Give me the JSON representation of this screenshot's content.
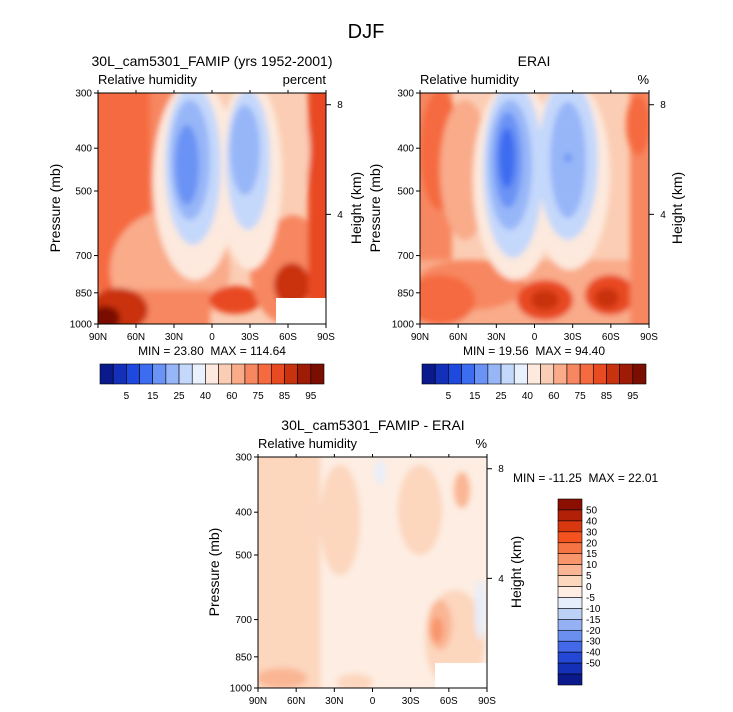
{
  "figure": {
    "title": "DJF"
  },
  "chart_data": [
    {
      "type": "heatmap",
      "id": "model",
      "title": "30L_cam5301_FAMIP (yrs 1952-2001)",
      "left_label": "Relative humidity",
      "right_label": "percent",
      "ylabel": "Pressure (mb)",
      "y2label": "Height (km)",
      "x_ticks": [
        "90N",
        "60N",
        "30N",
        "0",
        "30S",
        "60S",
        "90S"
      ],
      "x_values": [
        90,
        60,
        30,
        0,
        -30,
        -60,
        -90
      ],
      "y_ticks": [
        "300",
        "400",
        "500",
        "700",
        "850",
        "1000"
      ],
      "y_values": [
        300,
        400,
        500,
        700,
        850,
        1000
      ],
      "y2_ticks": [
        "8",
        "4"
      ],
      "y2_values": [
        8,
        4
      ],
      "stats": "MIN = 23.80  MAX = 114.64",
      "min": 23.8,
      "max": 114.64
    },
    {
      "type": "heatmap",
      "id": "obs",
      "title": "ERAI",
      "left_label": "Relative humidity",
      "right_label": "%",
      "ylabel": "Pressure (mb)",
      "y2label": "Height (km)",
      "x_ticks": [
        "90N",
        "60N",
        "30N",
        "0",
        "30S",
        "60S",
        "90S"
      ],
      "x_values": [
        90,
        60,
        30,
        0,
        -30,
        -60,
        -90
      ],
      "y_ticks": [
        "300",
        "400",
        "500",
        "700",
        "850",
        "1000"
      ],
      "y_values": [
        300,
        400,
        500,
        700,
        850,
        1000
      ],
      "y2_ticks": [
        "8",
        "4"
      ],
      "y2_values": [
        8,
        4
      ],
      "stats": "MIN = 19.56  MAX = 94.40",
      "min": 19.56,
      "max": 94.4
    },
    {
      "type": "heatmap",
      "id": "diff",
      "title": "30L_cam5301_FAMIP - ERAI",
      "left_label": "Relative humidity",
      "right_label": "%",
      "ylabel": "Pressure (mb)",
      "y2label": "Height (km)",
      "x_ticks": [
        "90N",
        "60N",
        "30N",
        "0",
        "30S",
        "60S",
        "90S"
      ],
      "x_values": [
        90,
        60,
        30,
        0,
        -30,
        -60,
        -90
      ],
      "y_ticks": [
        "300",
        "400",
        "500",
        "700",
        "850",
        "1000"
      ],
      "y_values": [
        300,
        400,
        500,
        700,
        850,
        1000
      ],
      "y2_ticks": [
        "8",
        "4"
      ],
      "y2_values": [
        8,
        4
      ],
      "stats": "MIN = -11.25  MAX = 22.01",
      "min": -11.25,
      "max": 22.01
    }
  ],
  "colorbars": {
    "abs": {
      "levels": [
        "5",
        "15",
        "25",
        "40",
        "60",
        "75",
        "85",
        "95"
      ],
      "colors": [
        "#0a1a8c",
        "#1530b8",
        "#1f48de",
        "#3c6cf0",
        "#6b93f5",
        "#97b6f8",
        "#c4d8fb",
        "#e8f1fd",
        "#fde9dd",
        "#fbcdb4",
        "#f9ab8a",
        "#f78760",
        "#f56a3f",
        "#e84a22",
        "#c9320f",
        "#9e1c05",
        "#7a0e00"
      ]
    },
    "diff": {
      "levels": [
        "50",
        "40",
        "30",
        "20",
        "15",
        "10",
        "5",
        "0",
        "-5",
        "-10",
        "-15",
        "-20",
        "-30",
        "-40",
        "-50"
      ],
      "colors": [
        "#8a0f00",
        "#b32008",
        "#d8380f",
        "#f4531f",
        "#f67443",
        "#f8956b",
        "#fab694",
        "#fcd6bd",
        "#fdede2",
        "#e6eefb",
        "#bdd1f7",
        "#93b1f3",
        "#6a8fef",
        "#4369e8",
        "#2447d6",
        "#1530b8",
        "#0a1a8c"
      ]
    }
  }
}
